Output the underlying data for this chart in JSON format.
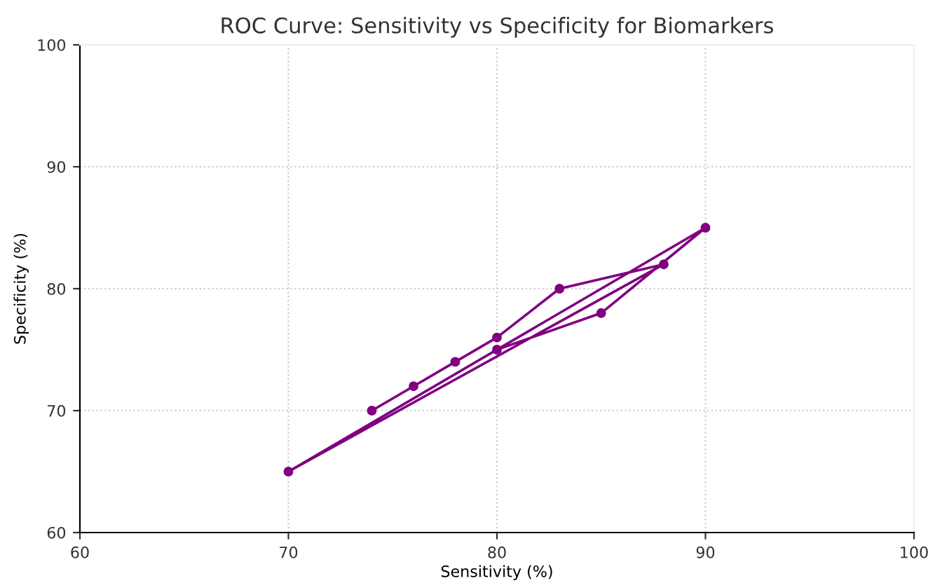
{
  "chart_data": {
    "type": "line",
    "title": "ROC Curve: Sensitivity vs Specificity for Biomarkers",
    "xlabel": "Sensitivity (%)",
    "ylabel": "Specificity (%)",
    "series": [
      {
        "color": "#800080",
        "x": [
          74,
          76,
          78,
          80,
          83,
          88,
          70,
          90,
          85,
          80
        ],
        "values": [
          70,
          72,
          74,
          76,
          80,
          82,
          65,
          85,
          78,
          75
        ]
      }
    ],
    "xlim": [
      60,
      100
    ],
    "xticks": [
      60,
      70,
      80,
      90,
      100
    ],
    "ylim": [
      60,
      100
    ],
    "yticks": [
      60,
      70,
      80,
      90,
      100
    ],
    "grid": true,
    "marker": "circle",
    "line_style": "solid"
  }
}
